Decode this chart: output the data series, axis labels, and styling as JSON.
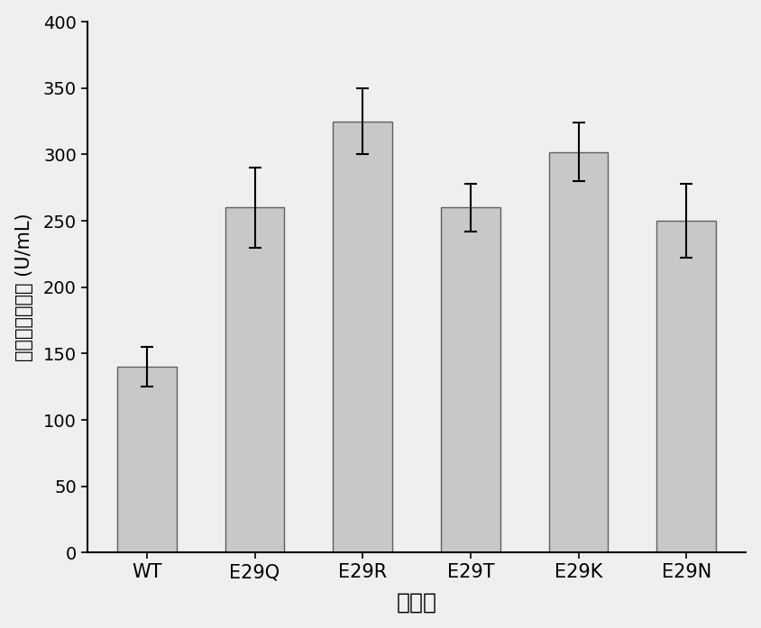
{
  "categories": [
    "WT",
    "E29Q",
    "E29R",
    "E29T",
    "E29K",
    "E29N"
  ],
  "values": [
    140,
    260,
    325,
    260,
    302,
    250
  ],
  "errors": [
    15,
    30,
    25,
    18,
    22,
    28
  ],
  "bar_color": "#c8c8c8",
  "bar_edgecolor": "#606060",
  "ylabel": "天冬酰胺酶酶活 (U/mL)",
  "xlabel": "突变体",
  "ylim": [
    0,
    400
  ],
  "yticks": [
    0,
    50,
    100,
    150,
    200,
    250,
    300,
    350,
    400
  ],
  "bar_width": 0.55,
  "figure_bg": "#f0eeee",
  "axes_bg": "#f0eeee",
  "spine_color": "#000000",
  "error_capsize": 5,
  "error_linewidth": 1.5,
  "error_color": "#000000",
  "ylabel_fontsize": 15,
  "xlabel_fontsize": 18,
  "tick_fontsize": 14,
  "xtick_fontsize": 15
}
